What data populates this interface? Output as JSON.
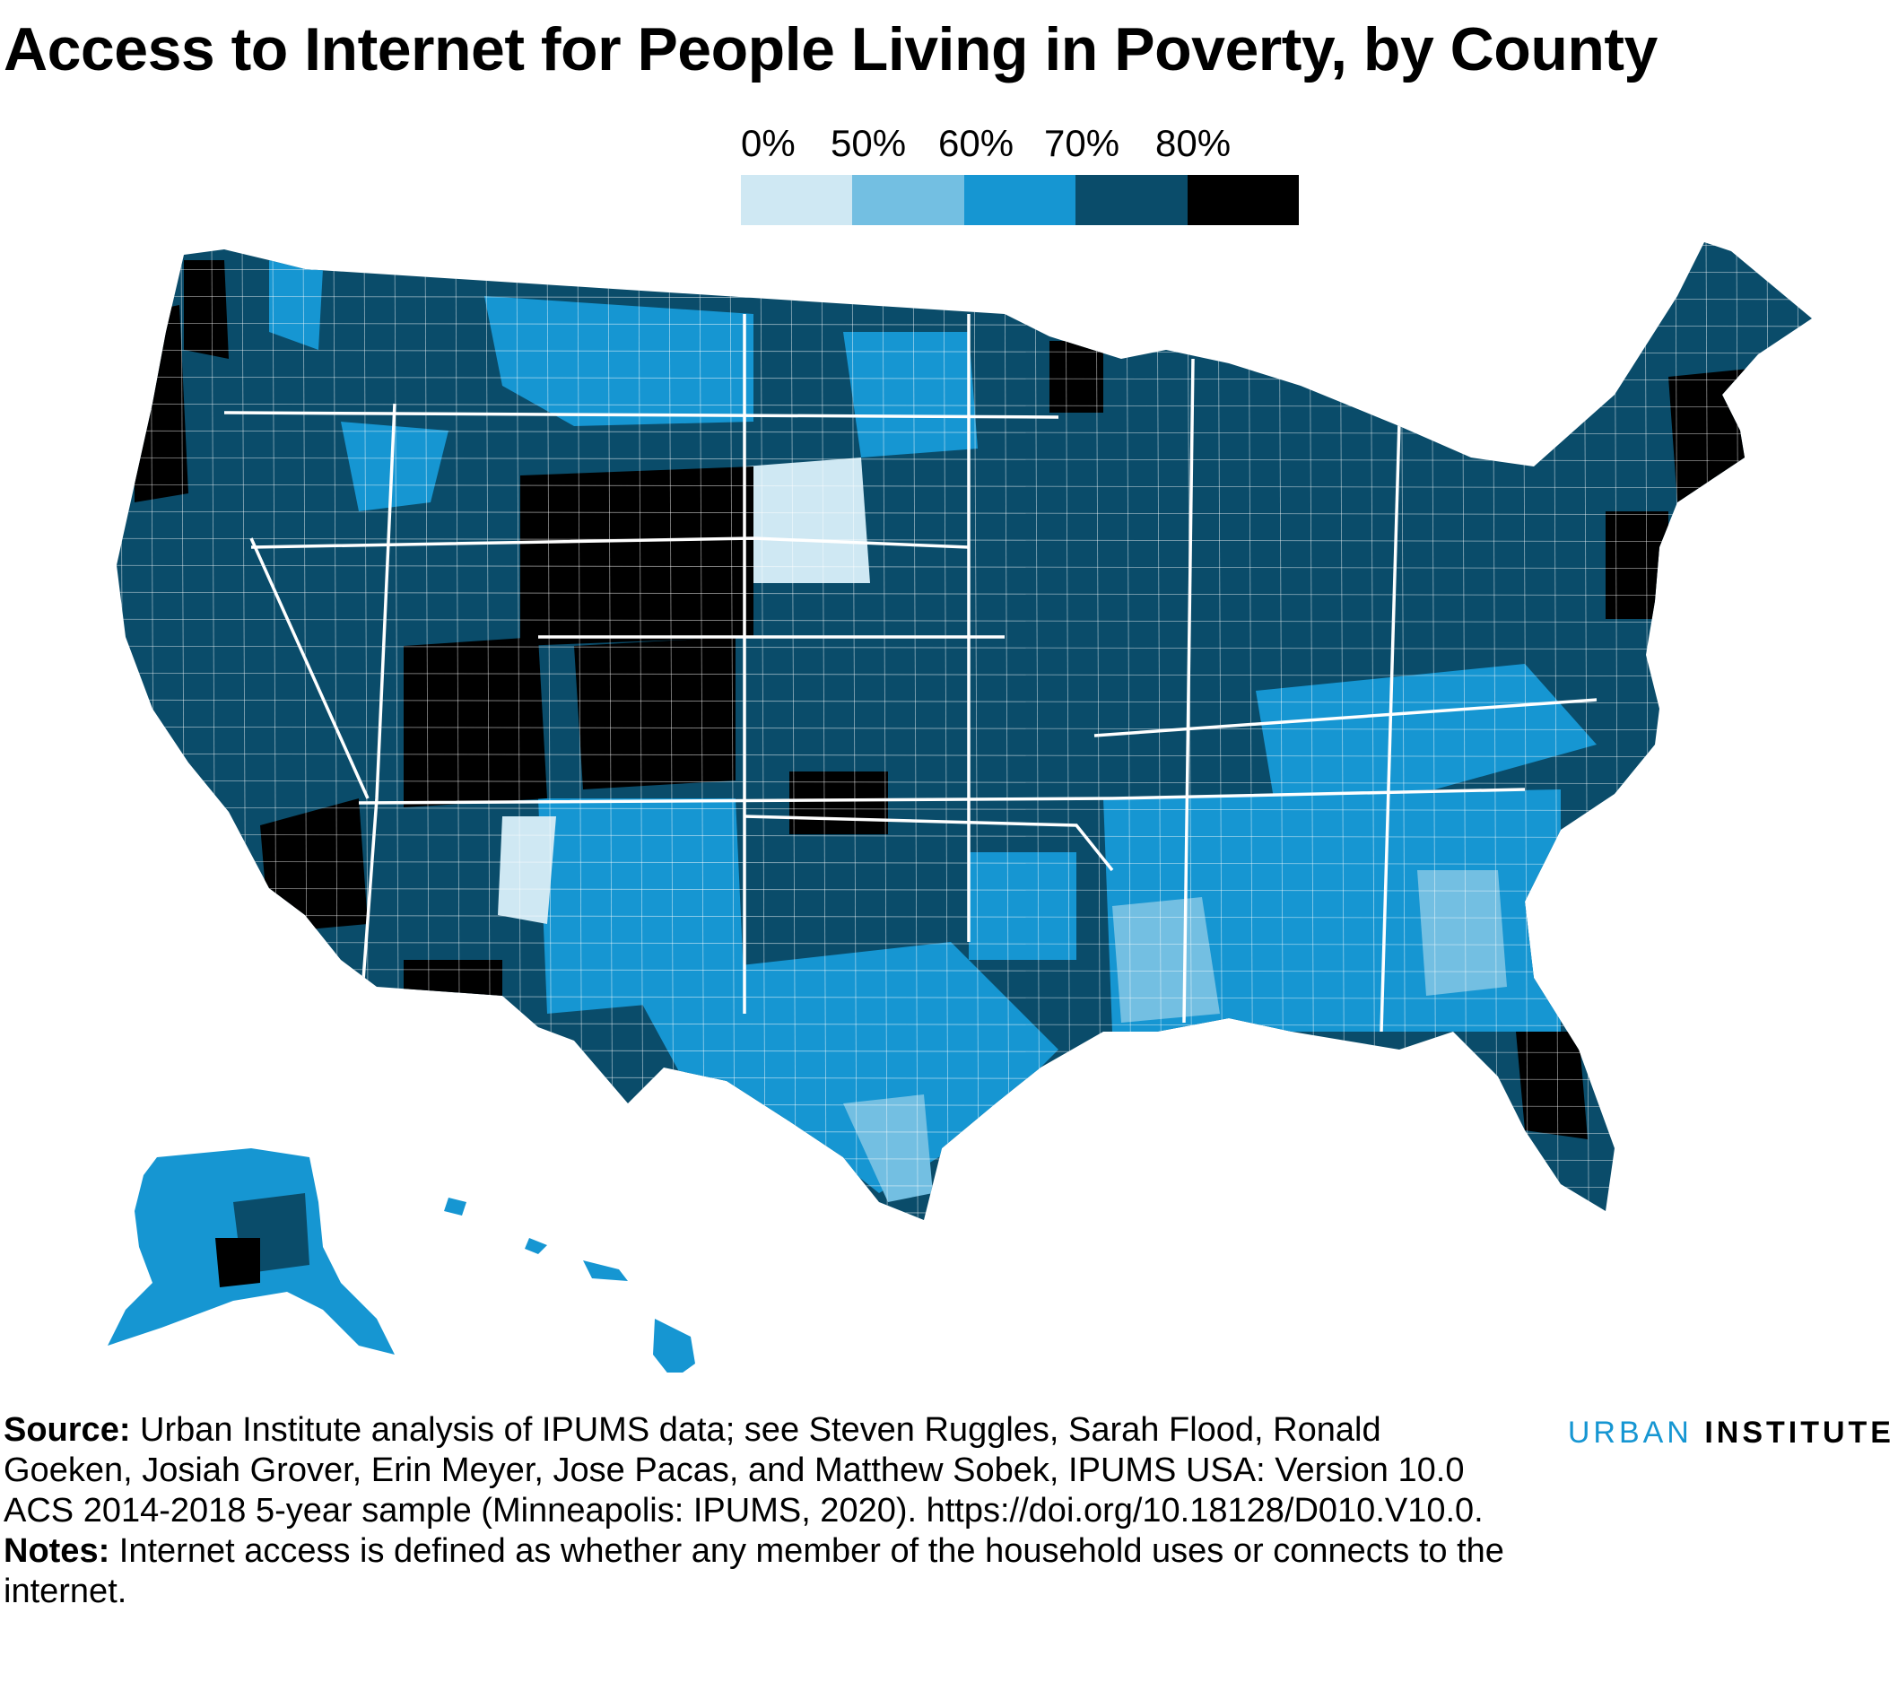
{
  "title": "Access to Internet for People Living in Poverty, by County",
  "legend": {
    "labels": [
      "0%",
      "50%",
      "60%",
      "70%",
      "80%"
    ],
    "colors": [
      "#cfe8f3",
      "#73bfe2",
      "#1696d2",
      "#0a4c6a",
      "#000000"
    ]
  },
  "map": {
    "type": "choropleth",
    "region": "United States counties",
    "palette": [
      "#cfe8f3",
      "#73bfe2",
      "#1696d2",
      "#0a4c6a",
      "#000000"
    ],
    "border_color": "#ffffff"
  },
  "footer": {
    "source_lead": "Source:",
    "source_text": "Urban Institute analysis of IPUMS data; see Steven Ruggles, Sarah Flood, Ronald Goeken, Josiah Grover, Erin Meyer, Jose Pacas, and Matthew Sobek, IPUMS USA: Version 10.0 ACS 2014-2018 5-year sample (Minneapolis: IPUMS, 2020). https://doi.org/10.18128/D010.V10.0.",
    "notes_lead": "Notes:",
    "notes_text": "Internet access is defined as whether any member of the household uses or connects to the internet."
  },
  "brand": {
    "word1": "URBAN",
    "word2": "INSTITUTE"
  }
}
